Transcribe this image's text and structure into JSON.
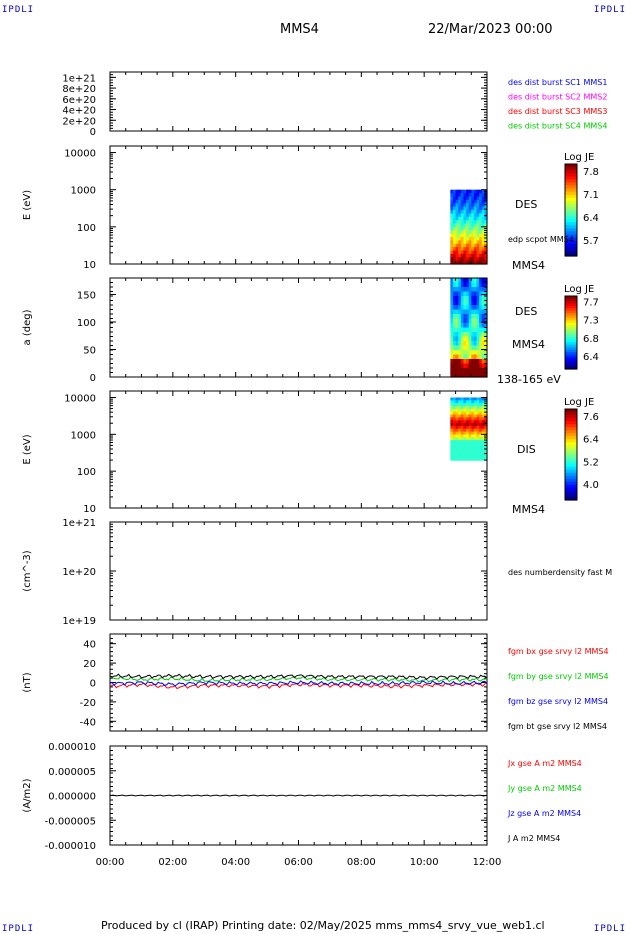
{
  "header": {
    "corner_left": "IPDLI",
    "corner_right": "IPDLI",
    "spacecraft": "MMS4",
    "datetime": "22/Mar/2023 00:00"
  },
  "footer": {
    "text": "Produced by cl (IRAP)   Printing date: 02/May/2025   mms_mms4_srvy_vue_web1.cl",
    "corner_left": "IPDLI",
    "corner_right": "IPDLI"
  },
  "colors": {
    "blue": "#0000ff",
    "magenta": "#ff00ff",
    "red": "#ff0000",
    "green": "#00cc00",
    "black": "#000000"
  },
  "chart_data": [
    {
      "id": "burst",
      "type": "line",
      "ylabel": "",
      "ylim": [
        0,
        1.1e+21
      ],
      "yticks": [
        "1e+21",
        "8e+20",
        "6e+20",
        "4e+20",
        "2e+20",
        "0"
      ],
      "legend": [
        {
          "label": "des dist burst SC1 MMS1",
          "color": "#0000ff"
        },
        {
          "label": "des dist burst SC2 MMS2",
          "color": "#ff00ff"
        },
        {
          "label": "des dist burst SC3 MMS3",
          "color": "#ff0000"
        },
        {
          "label": "des dist burst SC4 MMS4",
          "color": "#00cc00"
        }
      ],
      "series": [
        {
          "x": [
            "00:00",
            "12:00"
          ],
          "values": [
            0,
            0
          ]
        }
      ]
    },
    {
      "id": "des_energy",
      "type": "heatmap",
      "ylabel": "E (eV)",
      "yscale": "log",
      "ylim": [
        10,
        15000
      ],
      "yticks": [
        "10000",
        "1000",
        "100",
        "10"
      ],
      "data_start": "10:50",
      "data_end": "12:00",
      "y_data_range": [
        10,
        1000
      ],
      "right_labels": [
        "DES",
        "edp scpot MMS4",
        "MMS4"
      ],
      "colorbar": {
        "title": "Log JE",
        "ticks": [
          "7.8",
          "7.1",
          "6.4",
          "5.7"
        ]
      }
    },
    {
      "id": "des_pitch",
      "type": "heatmap",
      "ylabel": "a (deg)",
      "ylim": [
        0,
        180
      ],
      "yticks": [
        "150",
        "100",
        "50",
        "0"
      ],
      "data_start": "10:50",
      "data_end": "12:00",
      "right_labels": [
        "DES",
        "MMS4",
        "138-165 eV"
      ],
      "colorbar": {
        "title": "Log JE",
        "ticks": [
          "7.7",
          "7.3",
          "6.8",
          "6.4"
        ]
      }
    },
    {
      "id": "dis_energy",
      "type": "heatmap",
      "ylabel": "E (eV)",
      "yscale": "log",
      "ylim": [
        10,
        15000
      ],
      "yticks": [
        "10000",
        "1000",
        "100",
        "10"
      ],
      "data_start": "10:50",
      "data_end": "12:00",
      "y_data_range": [
        200,
        10000
      ],
      "right_labels": [
        "DIS",
        "MMS4"
      ],
      "colorbar": {
        "title": "Log JE",
        "ticks": [
          "7.6",
          "6.4",
          "5.2",
          "4.0"
        ]
      }
    },
    {
      "id": "density",
      "type": "line",
      "ylabel": "(cm^-3)",
      "yscale": "log",
      "ylim": [
        1e+19,
        1e+21
      ],
      "yticks": [
        "1e+21",
        "1e+20",
        "1e+19"
      ],
      "legend": [
        {
          "label": "des numberdensity fast M",
          "color": "#000000"
        }
      ],
      "series": []
    },
    {
      "id": "fgm",
      "type": "line",
      "ylabel": "(nT)",
      "ylim": [
        -50,
        50
      ],
      "yticks": [
        "40",
        "20",
        "0",
        "-20",
        "-40"
      ],
      "legend": [
        {
          "label": "fgm bx gse srvy l2 MMS4",
          "color": "#ff0000"
        },
        {
          "label": "fgm by gse srvy l2 MMS4",
          "color": "#00cc00"
        },
        {
          "label": "fgm bz gse srvy l2 MMS4",
          "color": "#0000ff"
        },
        {
          "label": "fgm bt gse srvy l2 MMS4",
          "color": "#000000"
        }
      ],
      "x": [
        0,
        1,
        2,
        3,
        4,
        5,
        6,
        7,
        8,
        9,
        10,
        11,
        12
      ],
      "series": [
        {
          "name": "fgm bx gse srvy l2 MMS4",
          "color": "#ff0000",
          "values": [
            -4,
            -2,
            -5,
            -3,
            -3,
            -4,
            -2,
            -3,
            -3,
            -4,
            -3,
            -2,
            -2
          ]
        },
        {
          "name": "fgm by gse srvy l2 MMS4",
          "color": "#00cc00",
          "values": [
            5,
            3,
            4,
            2,
            3,
            3,
            5,
            3,
            3,
            3,
            2,
            3,
            3
          ]
        },
        {
          "name": "fgm bz gse srvy l2 MMS4",
          "color": "#0000ff",
          "values": [
            -1,
            0,
            -2,
            0,
            -1,
            -1,
            0,
            -1,
            -1,
            -1,
            0,
            -1,
            0
          ]
        },
        {
          "name": "fgm bt gse srvy l2 MMS4",
          "color": "#000000",
          "values": [
            7,
            6,
            7,
            6,
            6,
            6,
            7,
            6,
            6,
            6,
            5,
            6,
            6
          ]
        }
      ]
    },
    {
      "id": "current",
      "type": "line",
      "ylabel": "(A/m2)",
      "ylim": [
        -1e-05,
        1e-05
      ],
      "yticks": [
        "0.000010",
        "0.000005",
        "0.000000",
        "-0.000005",
        "-0.000010"
      ],
      "xticks": [
        "00:00",
        "02:00",
        "04:00",
        "06:00",
        "08:00",
        "10:00",
        "12:00"
      ],
      "legend": [
        {
          "label": "Jx gse A m2 MMS4",
          "color": "#ff0000"
        },
        {
          "label": "Jy gse A m2 MMS4",
          "color": "#00cc00"
        },
        {
          "label": "Jz gse A m2 MMS4",
          "color": "#0000ff"
        },
        {
          "label": "J A m2 MMS4",
          "color": "#000000"
        }
      ],
      "series": [
        {
          "name": "J A m2 MMS4",
          "color": "#000000",
          "values": [
            0,
            0,
            0,
            0,
            0,
            0,
            0,
            0,
            0,
            0,
            0,
            0,
            0
          ]
        }
      ]
    }
  ]
}
